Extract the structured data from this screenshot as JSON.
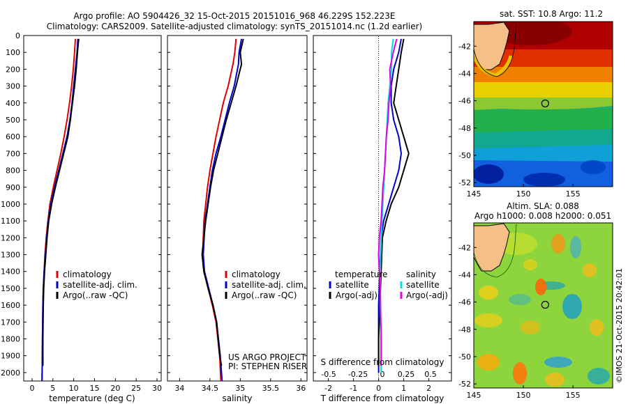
{
  "header": {
    "line1": "Argo profile: AO 5904426_32 15-Oct-2015 20151016_968 46.229S 152.223E",
    "line2": "Climatology: CARS2009. Satellite-adjusted climatology: synTS_20151014.nc (1.2d earlier)"
  },
  "colors": {
    "climatology": "#e00000",
    "satellite": "#0000cc",
    "argo": "#000000",
    "sal_satellite": "#00e0e0",
    "sal_argo": "#e000e0"
  },
  "chart_data": [
    {
      "type": "line",
      "xlabel": "temperature (deg C)",
      "xlim": [
        -2,
        31
      ],
      "ylim": [
        2050,
        0
      ],
      "xticks": [
        0,
        5,
        10,
        15,
        20,
        25,
        30
      ],
      "yticks": [
        0,
        100,
        200,
        300,
        400,
        500,
        600,
        700,
        800,
        900,
        1000,
        1100,
        1200,
        1300,
        1400,
        1500,
        1600,
        1700,
        1800,
        1900,
        2000
      ],
      "legend": [
        "climatology",
        "satellite-adj. clim.",
        "Argo(..raw -QC)"
      ],
      "series": [
        {
          "name": "climatology",
          "x": [
            10.4,
            10.2,
            9.9,
            9.5,
            9.0,
            8.4,
            7.7,
            6.9,
            6.0,
            5.1,
            4.3,
            3.8,
            3.4,
            3.1,
            2.9,
            2.7,
            2.6,
            2.5,
            2.4
          ],
          "y": [
            20,
            100,
            200,
            300,
            400,
            500,
            600,
            700,
            800,
            900,
            1000,
            1100,
            1200,
            1300,
            1400,
            1500,
            1600,
            1800,
            2050
          ]
        },
        {
          "name": "satellite-adj. clim.",
          "x": [
            11.0,
            10.8,
            10.4,
            10.0,
            9.6,
            9.1,
            8.4,
            7.4,
            6.4,
            5.4,
            4.5,
            3.9,
            3.5,
            3.2,
            2.9,
            2.7,
            2.6,
            2.5,
            2.4
          ],
          "y": [
            20,
            100,
            200,
            300,
            400,
            500,
            600,
            700,
            800,
            900,
            1000,
            1100,
            1200,
            1300,
            1400,
            1500,
            1600,
            1800,
            2050
          ]
        },
        {
          "name": "Argo(..raw -QC)",
          "x": [
            11.2,
            10.9,
            10.6,
            10.2,
            9.7,
            9.2,
            8.6,
            7.6,
            6.6,
            5.6,
            4.7,
            4.0,
            3.6,
            3.3,
            3.0,
            2.8,
            2.7,
            2.6,
            2.6
          ],
          "y": [
            20,
            100,
            200,
            300,
            400,
            500,
            600,
            700,
            800,
            900,
            1000,
            1100,
            1200,
            1300,
            1400,
            1500,
            1600,
            1800,
            1960
          ]
        }
      ]
    },
    {
      "type": "line",
      "xlabel": "salinity",
      "xlim": [
        33.8,
        36.1
      ],
      "ylim": [
        2050,
        0
      ],
      "xticks": [
        34,
        34.5,
        35,
        35.5,
        36
      ],
      "legend": [
        "climatology",
        "satellite-adj. clim.",
        "Argo(..raw -QC)"
      ],
      "footer": [
        "US ARGO PROJECT",
        "PI: STEPHEN RISER"
      ],
      "series": [
        {
          "name": "climatology",
          "x": [
            34.93,
            34.91,
            34.88,
            34.8,
            34.72,
            34.66,
            34.6,
            34.55,
            34.5,
            34.46,
            34.43,
            34.4,
            34.38,
            34.4,
            34.47,
            34.54,
            34.6,
            34.66,
            34.68
          ],
          "y": [
            20,
            100,
            170,
            300,
            400,
            500,
            600,
            700,
            800,
            900,
            1000,
            1100,
            1300,
            1400,
            1500,
            1600,
            1700,
            1900,
            2050
          ]
        },
        {
          "name": "satellite-adj. clim.",
          "x": [
            35.02,
            34.98,
            34.97,
            34.9,
            34.82,
            34.75,
            34.68,
            34.6,
            34.54,
            34.5,
            34.46,
            34.42,
            34.39,
            34.41,
            34.48,
            34.55,
            34.61,
            34.67,
            34.7
          ],
          "y": [
            20,
            100,
            170,
            300,
            400,
            500,
            600,
            700,
            800,
            900,
            1000,
            1100,
            1300,
            1400,
            1500,
            1600,
            1700,
            1900,
            2050
          ]
        },
        {
          "name": "Argo(..raw -QC)",
          "x": [
            35.05,
            35.0,
            35.02,
            34.93,
            34.85,
            34.77,
            34.7,
            34.63,
            34.56,
            34.51,
            34.47,
            34.43,
            34.37,
            34.4,
            34.47,
            34.55,
            34.61,
            34.66,
            34.69
          ],
          "y": [
            20,
            100,
            170,
            300,
            400,
            500,
            600,
            700,
            800,
            900,
            1000,
            1100,
            1300,
            1400,
            1500,
            1600,
            1700,
            1900,
            1960
          ]
        }
      ]
    },
    {
      "type": "line",
      "xlabel": "T difference from climatology",
      "xlabel2": "S difference from climatology",
      "xlim": [
        -2.6,
        2.9
      ],
      "ylim": [
        2050,
        0
      ],
      "xticks": [
        -2,
        -1,
        0,
        1,
        2
      ],
      "xticks2": [
        "-0.5",
        "-0.25",
        "0",
        "0.25",
        "0.5"
      ],
      "legend_left_title": "temperature",
      "legend_right_title": "salinity",
      "legend_left": [
        "satellite",
        "Argo(-adj)"
      ],
      "legend_right": [
        "satellite",
        "Argo(-adj)"
      ],
      "series": [
        {
          "name": "temperature satellite",
          "x": [
            0.9,
            0.8,
            0.6,
            0.5,
            0.5,
            0.6,
            0.8,
            0.9,
            0.8,
            0.6,
            0.4,
            0.2,
            0.1,
            0.05,
            0.0,
            0.0,
            0.0,
            0.0
          ],
          "y": [
            20,
            100,
            200,
            300,
            400,
            500,
            600,
            700,
            800,
            900,
            1000,
            1100,
            1200,
            1400,
            1600,
            1800,
            1900,
            2000
          ]
        },
        {
          "name": "temperature Argo(-adj)",
          "x": [
            1.0,
            0.9,
            0.8,
            0.7,
            0.6,
            0.8,
            1.0,
            1.2,
            1.0,
            0.8,
            0.5,
            0.3,
            0.15,
            0.1,
            0.05,
            0.0,
            0.0,
            0.0
          ],
          "y": [
            20,
            100,
            200,
            300,
            400,
            500,
            600,
            700,
            800,
            900,
            1000,
            1100,
            1200,
            1400,
            1600,
            1800,
            1900,
            1960
          ]
        },
        {
          "name": "salinity satellite",
          "x": [
            0.7,
            0.6,
            0.6,
            0.5,
            0.4,
            0.35,
            0.3,
            0.2,
            0.15,
            0.1,
            0.05,
            0.0,
            -0.05,
            -0.05,
            0.0,
            0.0
          ],
          "y": [
            20,
            100,
            200,
            300,
            400,
            500,
            600,
            800,
            900,
            1000,
            1100,
            1200,
            1400,
            1600,
            1800,
            2000
          ]
        },
        {
          "name": "salinity Argo(-adj)",
          "x": [
            0.9,
            0.7,
            0.5,
            0.55,
            0.45,
            0.4,
            0.3,
            0.2,
            0.1,
            0.05,
            0.0,
            -0.1,
            -0.15,
            -0.05,
            0.0,
            0.0
          ],
          "y": [
            20,
            100,
            200,
            300,
            400,
            500,
            600,
            800,
            900,
            1000,
            1100,
            1200,
            1300,
            1500,
            1800,
            1960
          ]
        }
      ]
    },
    {
      "type": "heatmap",
      "title": "sat. SST: 10.8 Argo: 11.2",
      "xlim": [
        145,
        159
      ],
      "ylim": [
        -52.3,
        -40.2
      ],
      "xticks": [
        145,
        150,
        155
      ],
      "yticks": [
        -42,
        -44,
        -46,
        -48,
        -50,
        -52
      ],
      "argo_position": [
        152.2,
        -46.2
      ]
    },
    {
      "type": "heatmap",
      "title_line1": "Altim. SLA: 0.088",
      "title_line2": "Argo h1000: 0.008 h2000: 0.051",
      "xlim": [
        145,
        159
      ],
      "ylim": [
        -52.3,
        -40.2
      ],
      "xticks": [
        145,
        150,
        155
      ],
      "yticks": [
        -42,
        -44,
        -46,
        -48,
        -50,
        -52
      ],
      "argo_position": [
        152.2,
        -46.2
      ],
      "side_label": "©IMOS 21-Oct-2015 20:42:01"
    }
  ]
}
